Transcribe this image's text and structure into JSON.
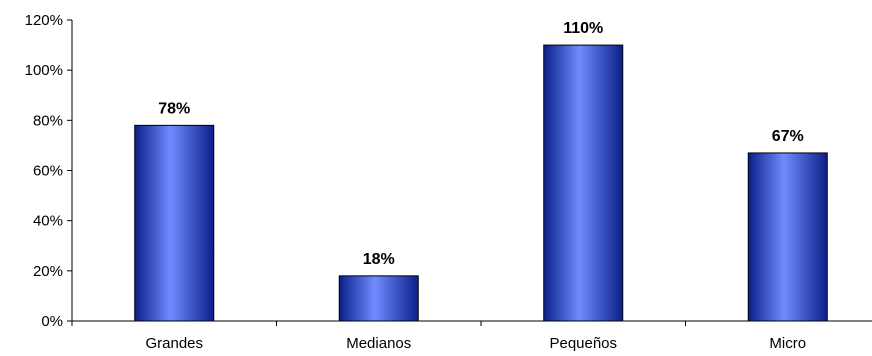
{
  "chart_data": {
    "type": "bar",
    "categories": [
      "Grandes",
      "Medianos",
      "Pequeños",
      "Micro"
    ],
    "values": [
      78,
      18,
      110,
      67
    ],
    "data_labels": [
      "78%",
      "18%",
      "110%",
      "67%"
    ],
    "ylim": [
      0,
      120
    ],
    "yticks": [
      0,
      20,
      40,
      60,
      80,
      100,
      120
    ],
    "ytick_labels": [
      "0%",
      "20%",
      "40%",
      "60%",
      "80%",
      "100%",
      "120%"
    ],
    "grid": false,
    "legend": "none",
    "colors": {
      "bar_light": "#6f8cff",
      "bar_mid": "#2a4fe6",
      "bar_dark": "#0b1f8a",
      "outline": "#000000"
    }
  }
}
